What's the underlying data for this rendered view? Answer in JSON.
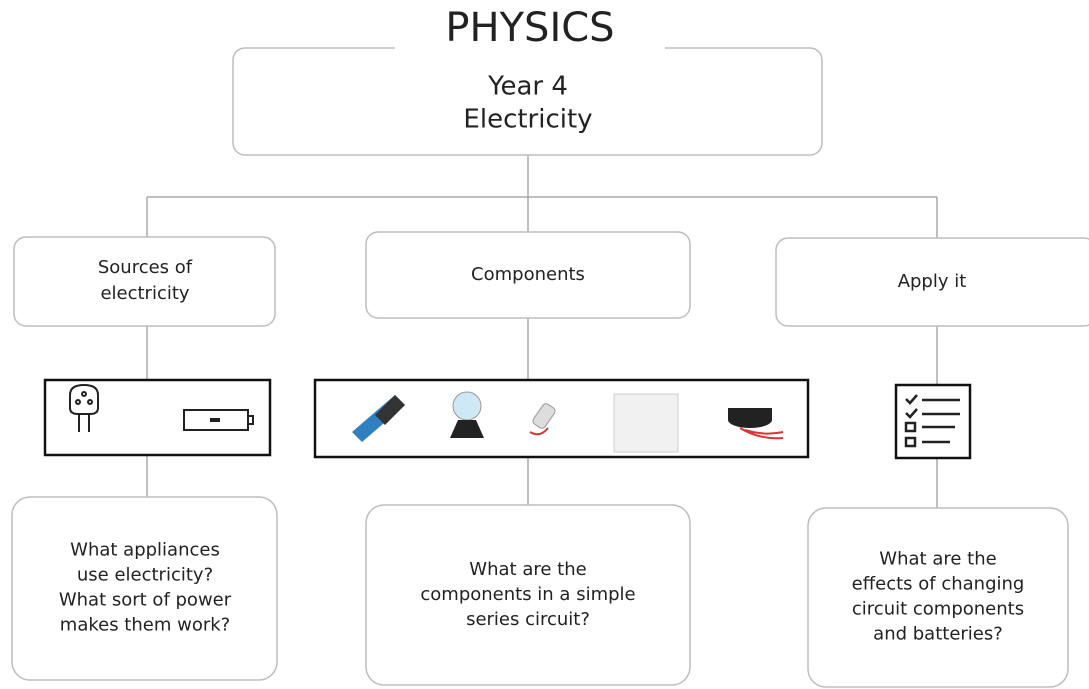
{
  "title": "PHYSICS",
  "root": {
    "lines": [
      "Year 4",
      "Electricity"
    ]
  },
  "branches": [
    {
      "label_lines": [
        "Sources of",
        "electricity"
      ],
      "question_lines": [
        "What appliances",
        "use electricity?",
        "What sort of power",
        "makes them work?"
      ]
    },
    {
      "label_lines": [
        "Components"
      ],
      "question_lines": [
        "What are the",
        "components in a simple",
        "series circuit?"
      ]
    },
    {
      "label_lines": [
        "Apply it"
      ],
      "question_lines": [
        "What are the",
        "effects of changing",
        "circuit components",
        "and batteries?"
      ]
    }
  ]
}
